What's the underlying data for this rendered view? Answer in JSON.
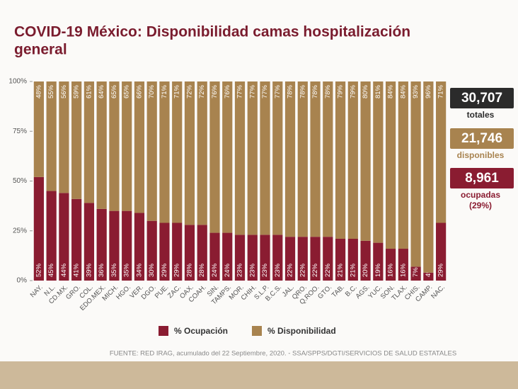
{
  "chart_data": {
    "type": "stacked_bar",
    "title": [
      "COVID-19 México: Disponibilidad camas hospitalización",
      "general"
    ],
    "categories": [
      "NAY.",
      "N.L.",
      "CD.MX.",
      "GRO.",
      "COL.",
      "EDO.MEX.",
      "MICH.",
      "HGO.",
      "VER.",
      "DGO.",
      "PUE.",
      "ZAC.",
      "OAX.",
      "COAH.",
      "SIN.",
      "TAMPS.",
      "MOR.",
      "CHIH.",
      "S.L.P.",
      "B.C.S.",
      "JAL.",
      "QRO.",
      "Q.ROO.",
      "GTO.",
      "TAB.",
      "B.C.",
      "AGS.",
      "YUC.",
      "SON.",
      "TLAX.",
      "CHIS.",
      "CAMP.",
      "NAC."
    ],
    "series": [
      {
        "name": "% Ocupación",
        "color": "#8a1c31",
        "values": [
          52,
          45,
          44,
          41,
          39,
          36,
          35,
          35,
          34,
          30,
          29,
          29,
          28,
          28,
          24,
          24,
          23,
          23,
          23,
          23,
          22,
          22,
          22,
          22,
          21,
          21,
          20,
          19,
          16,
          16,
          7,
          4,
          29
        ],
        "value_labels": [
          "52%",
          "45%",
          "44%",
          "41%",
          "39%",
          "36%",
          "35%",
          "35%",
          "34%",
          "30%",
          "29%",
          "29%",
          "28%",
          "28%",
          "24%",
          "24%",
          "23%",
          "23%",
          "23%",
          "23%",
          "22%",
          "22%",
          "22%",
          "22%",
          "21%",
          "21%",
          "20%",
          "19%",
          "16%",
          "16%",
          "7%",
          "4%",
          "29%"
        ]
      },
      {
        "name": "% Disponibilidad",
        "color": "#a8834f",
        "values": [
          48,
          55,
          56,
          59,
          61,
          64,
          65,
          65,
          66,
          70,
          71,
          71,
          72,
          72,
          76,
          76,
          77,
          77,
          77,
          77,
          78,
          78,
          78,
          78,
          79,
          79,
          80,
          81,
          84,
          84,
          93,
          96,
          71
        ],
        "value_labels": [
          "48%",
          "55%",
          "56%",
          "59%",
          "61%",
          "64%",
          "65%",
          "65%",
          "66%",
          "70%",
          "71%",
          "71%",
          "72%",
          "72%",
          "76%",
          "76%",
          "77%",
          "77%",
          "77%",
          "77%",
          "78%",
          "78%",
          "78%",
          "78%",
          "79%",
          "79%",
          "80%",
          "81%",
          "84%",
          "84%",
          "93%",
          "96%",
          "71%"
        ]
      }
    ],
    "ylim": [
      0,
      100
    ],
    "yticks": [
      {
        "value": 0,
        "label": "0%"
      },
      {
        "value": 25,
        "label": "25%"
      },
      {
        "value": 50,
        "label": "50%"
      },
      {
        "value": 75,
        "label": "75%"
      },
      {
        "value": 100,
        "label": "100%"
      }
    ],
    "grid": false,
    "summary": [
      {
        "value": "30,707",
        "label": [
          "totales"
        ]
      },
      {
        "value": "21,746",
        "label": [
          "disponibles"
        ]
      },
      {
        "value": "8,961",
        "label": [
          "ocupadas",
          "(29%)"
        ]
      }
    ],
    "source": "FUENTE: RED IRAG, acumulado del 22 Septiembre, 2020. - SSA/SPPS/DGTI/SERVICIOS DE SALUD ESTATALES"
  }
}
